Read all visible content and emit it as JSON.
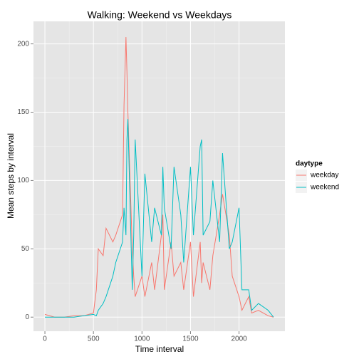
{
  "chart_data": {
    "type": "line",
    "title": "Walking: Weekend vs Weekdays",
    "x_label": "Time interval",
    "y_label": "Mean steps by interval",
    "legend_title": "daytype",
    "x": [
      0,
      100,
      200,
      300,
      400,
      500,
      530,
      550,
      600,
      630,
      700,
      730,
      800,
      815,
      835,
      845,
      855,
      900,
      915,
      930,
      1000,
      1030,
      1100,
      1130,
      1200,
      1215,
      1230,
      1300,
      1330,
      1400,
      1430,
      1500,
      1530,
      1600,
      1615,
      1630,
      1700,
      1730,
      1800,
      1830,
      1900,
      1930,
      2000,
      2030,
      2100,
      2130,
      2200,
      2300,
      2355
    ],
    "series": [
      {
        "name": "weekday",
        "color": "#F8766D",
        "values": [
          2,
          0,
          0,
          1,
          1,
          3,
          20,
          50,
          45,
          65,
          55,
          60,
          75,
          155,
          205,
          180,
          150,
          50,
          30,
          15,
          30,
          15,
          40,
          20,
          60,
          75,
          20,
          55,
          30,
          40,
          20,
          55,
          15,
          55,
          25,
          40,
          20,
          45,
          75,
          90,
          60,
          30,
          15,
          5,
          15,
          3,
          5,
          1,
          0
        ]
      },
      {
        "name": "weekend",
        "color": "#00BFC4",
        "values": [
          0,
          0,
          0,
          0,
          1,
          2,
          1,
          5,
          10,
          15,
          30,
          40,
          55,
          80,
          60,
          130,
          145,
          20,
          60,
          130,
          30,
          105,
          55,
          80,
          60,
          110,
          80,
          50,
          110,
          75,
          40,
          110,
          60,
          125,
          130,
          60,
          70,
          100,
          55,
          120,
          50,
          55,
          80,
          20,
          20,
          5,
          10,
          5,
          0
        ]
      }
    ],
    "xlim": [
      -117.75,
      2472.75
    ],
    "xticks": [
      0,
      500,
      1000,
      1500,
      2000
    ],
    "ylim": [
      -10.31,
      216.48
    ],
    "yticks": [
      0,
      50,
      100,
      150,
      200
    ],
    "grid": true
  }
}
